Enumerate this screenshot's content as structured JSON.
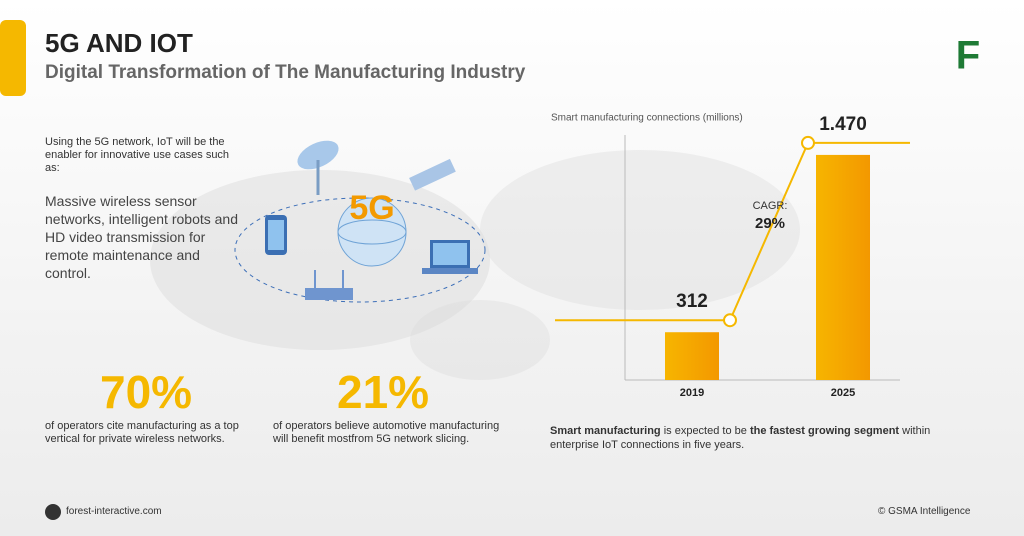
{
  "header": {
    "title": "5G AND IOT",
    "subtitle": "Digital Transformation of The Manufacturing Industry"
  },
  "intro": {
    "lead": "Using the 5G network, IoT will be the enabler for innovative use cases such as:",
    "detail": "Massive wireless sensor networks, intelligent robots and HD video transmission for remote maintenance and control."
  },
  "stats": [
    {
      "value": "70%",
      "text": "of operators cite manufacturing as a top vertical for private wireless networks."
    },
    {
      "value": "21%",
      "text": "of operators believe automotive manufacturing will benefit mostfrom 5G network slicing."
    }
  ],
  "chart_data": {
    "type": "bar",
    "y_label": "Smart manufacturing connections (millions)",
    "categories": [
      "2019",
      "2025"
    ],
    "values": [
      312,
      1470
    ],
    "value_labels": [
      "312",
      "1.470"
    ],
    "color": "#f7b500",
    "ylim": [
      0,
      1600
    ],
    "annotations": [
      "CAGR:",
      "29%"
    ]
  },
  "note": [
    "Smart manufacturing",
    " is expected to be ",
    "the fastest growing segment",
    " within enterprise IoT connections in five years."
  ],
  "footer": {
    "site": "forest-interactive.com",
    "source": "© GSMA Intelligence"
  }
}
